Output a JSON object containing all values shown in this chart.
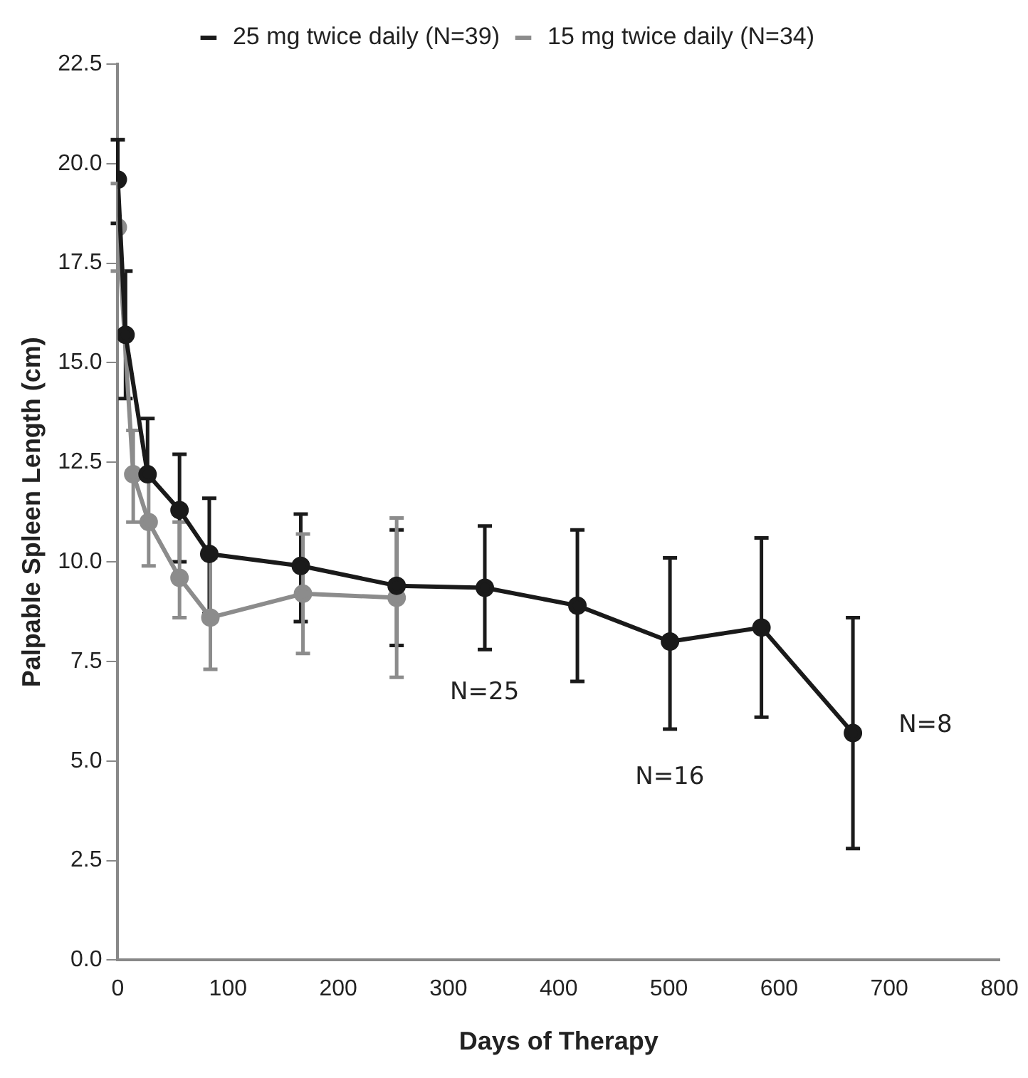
{
  "chart_data": {
    "type": "line",
    "xlabel": "Days of Therapy",
    "ylabel": "Palpable Spleen Length (cm)",
    "xlim": [
      0,
      800
    ],
    "xticks": [
      0,
      100,
      200,
      300,
      400,
      500,
      600,
      700,
      800
    ],
    "ylim": [
      0,
      22.5
    ],
    "yticks": [
      {
        "value": 0,
        "label": "0.0"
      },
      {
        "value": 2.5,
        "label": "2.5"
      },
      {
        "value": 5,
        "label": "5.0"
      },
      {
        "value": 7.5,
        "label": "7.5"
      },
      {
        "value": 10,
        "label": "10.0"
      },
      {
        "value": 12.5,
        "label": "12.5"
      },
      {
        "value": 15,
        "label": "15.0"
      },
      {
        "value": 17.5,
        "label": "17.5"
      },
      {
        "value": 20,
        "label": "20.0"
      },
      {
        "value": 22.5,
        "label": "22.5"
      }
    ],
    "grid": false,
    "legend": "top",
    "marker": "circle",
    "line_style": "solid",
    "series": [
      {
        "name": "25 mg twice daily (N=39)",
        "color": "#1a1a1a",
        "x": [
          0,
          7,
          27,
          56,
          83,
          166,
          253,
          333,
          417,
          501,
          584,
          667
        ],
        "values": [
          19.6,
          15.7,
          12.2,
          11.3,
          10.2,
          9.9,
          9.4,
          9.35,
          8.9,
          8.0,
          8.35,
          5.7
        ],
        "errors": [
          [
            18.5,
            20.6
          ],
          [
            14.1,
            17.3
          ],
          [
            12.2,
            13.6
          ],
          [
            10.0,
            12.7
          ],
          [
            8.7,
            11.6
          ],
          [
            8.5,
            11.2
          ],
          [
            7.9,
            10.8
          ],
          [
            7.8,
            10.9
          ],
          [
            7.0,
            10.8
          ],
          [
            5.8,
            10.1
          ],
          [
            6.1,
            10.6
          ],
          [
            2.8,
            8.6
          ]
        ]
      },
      {
        "name": "15 mg twice daily (N=34)",
        "color": "#8c8c8c",
        "x": [
          0,
          14,
          28,
          56,
          84,
          168,
          253
        ],
        "values": [
          18.4,
          12.2,
          11.0,
          9.6,
          8.6,
          9.2,
          9.1
        ],
        "errors": [
          [
            17.3,
            19.5
          ],
          [
            11.0,
            13.3
          ],
          [
            9.9,
            12.1
          ],
          [
            8.6,
            11.0
          ],
          [
            7.3,
            10.1
          ],
          [
            7.7,
            10.7
          ],
          [
            7.1,
            11.1
          ]
        ]
      }
    ],
    "annotations": [
      "N=25",
      "N=16",
      "N=8"
    ]
  }
}
